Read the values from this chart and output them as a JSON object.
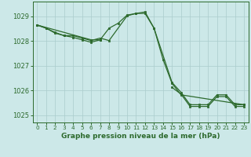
{
  "title": "Graphe pression niveau de la mer (hPa)",
  "bg_color": "#cce8e8",
  "line_color": "#2d6a2d",
  "marker_color": "#2d6a2d",
  "grid_color": "#aacccc",
  "axis_color": "#2d6a2d",
  "xlim": [
    -0.5,
    23.5
  ],
  "ylim": [
    1024.7,
    1029.6
  ],
  "yticks": [
    1025,
    1026,
    1027,
    1028,
    1029
  ],
  "xticks": [
    0,
    1,
    2,
    3,
    4,
    5,
    6,
    7,
    8,
    9,
    10,
    11,
    12,
    13,
    14,
    15,
    16,
    17,
    18,
    19,
    20,
    21,
    22,
    23
  ],
  "line1_x": [
    0,
    1,
    2,
    3,
    4,
    5,
    6,
    7,
    8,
    10,
    11,
    12,
    13,
    15,
    16,
    17,
    18,
    19,
    20,
    21,
    22,
    23
  ],
  "line1_y": [
    1028.65,
    1028.52,
    1028.32,
    1028.22,
    1028.22,
    1028.12,
    1028.02,
    1028.12,
    1028.02,
    1029.02,
    1029.12,
    1029.12,
    1028.52,
    1026.32,
    1025.92,
    1025.42,
    1025.42,
    1025.42,
    1025.82,
    1025.82,
    1025.42,
    1025.42
  ],
  "line2a_x": [
    0,
    1,
    2,
    3,
    4,
    5,
    6,
    7
  ],
  "line2a_y": [
    1028.65,
    1028.52,
    1028.35,
    1028.22,
    1028.15,
    1028.05,
    1027.95,
    1028.05
  ],
  "line2b_x": [
    15,
    16,
    17,
    18,
    19,
    20,
    21,
    22,
    23
  ],
  "line2b_y": [
    1026.12,
    1025.85,
    1025.35,
    1025.35,
    1025.35,
    1025.75,
    1025.75,
    1025.35,
    1025.35
  ],
  "line3_x": [
    0,
    6,
    7,
    8,
    9,
    10,
    11,
    12,
    13,
    14,
    15,
    16,
    23
  ],
  "line3_y": [
    1028.65,
    1028.05,
    1028.05,
    1028.52,
    1028.72,
    1029.05,
    1029.12,
    1029.18,
    1028.52,
    1027.25,
    1026.28,
    1025.82,
    1025.42
  ]
}
